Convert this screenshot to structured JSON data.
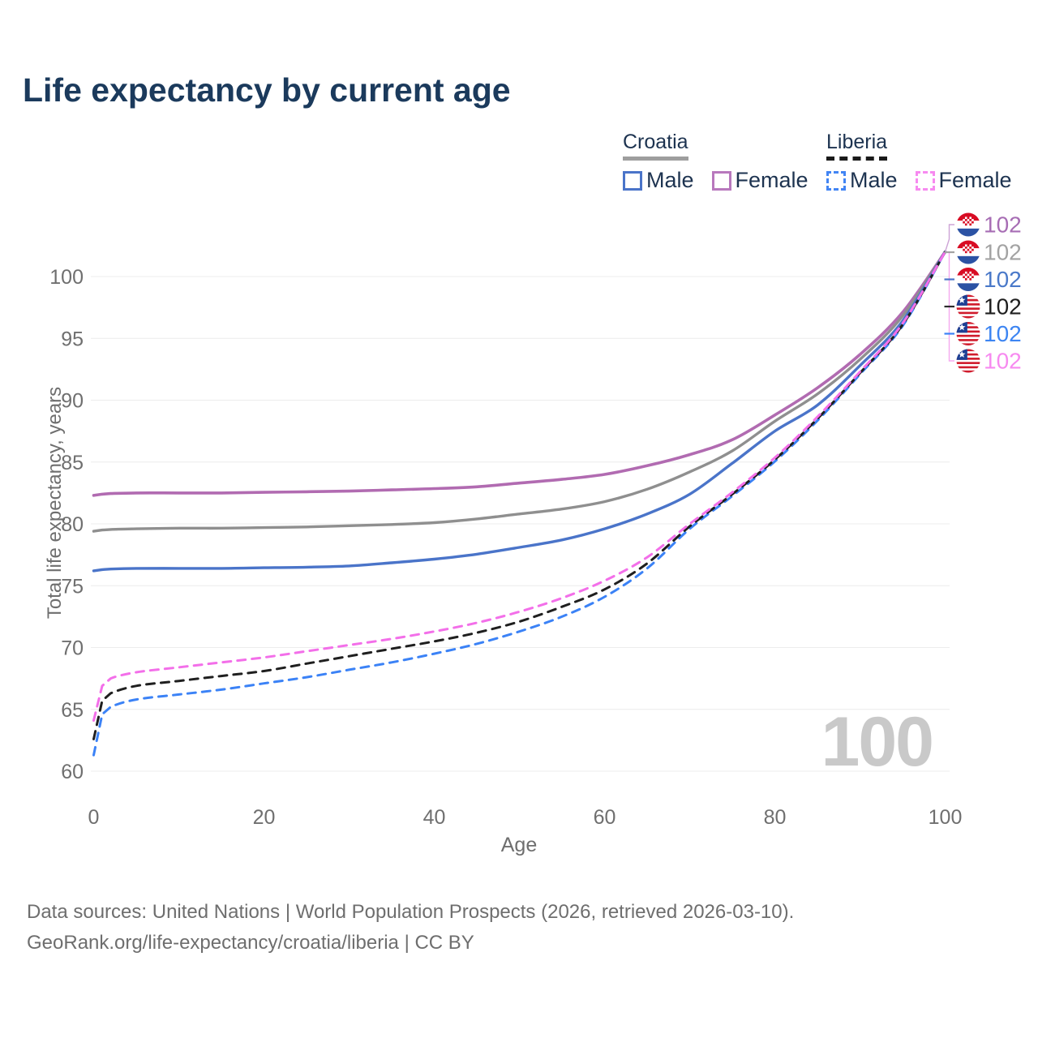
{
  "title": "Life expectancy by current age",
  "legend": {
    "groups": [
      {
        "label": "Croatia",
        "line_style": "solid",
        "underline_color": "#9e9e9e",
        "items": [
          {
            "label": "Male",
            "color": "#4a74c9"
          },
          {
            "label": "Female",
            "color": "#b878bd"
          }
        ]
      },
      {
        "label": "Liberia",
        "line_style": "dashed",
        "underline_color": "#1a1a1a",
        "items": [
          {
            "label": "Male",
            "color": "#4285f4"
          },
          {
            "label": "Female",
            "color": "#f78af0"
          }
        ]
      }
    ]
  },
  "watermark": "100",
  "footer": {
    "line1": "Data sources: United Nations | World Population Prospects (2026, retrieved 2026-03-10).",
    "line2": "GeoRank.org/life-expectancy/croatia/liberia | CC BY"
  },
  "chart_data": {
    "type": "line",
    "title": "Life expectancy by current age",
    "xlabel": "Age",
    "ylabel": "Total life expectancy, years",
    "xlim": [
      0,
      100
    ],
    "ylim": [
      60,
      102
    ],
    "x_ticks": [
      0,
      20,
      40,
      60,
      80,
      100
    ],
    "y_ticks": [
      60,
      65,
      70,
      75,
      80,
      85,
      90,
      95,
      100
    ],
    "grid": "horizontal",
    "legend_position": "top-right",
    "x": [
      0,
      1,
      2,
      5,
      10,
      15,
      20,
      25,
      30,
      35,
      40,
      45,
      50,
      55,
      60,
      65,
      70,
      75,
      80,
      85,
      90,
      95,
      100
    ],
    "series": [
      {
        "name": "Croatia Female",
        "country": "Croatia",
        "sex": "Female",
        "style": "solid",
        "color": "#b16bb1",
        "width": 3.6,
        "values": [
          82.3,
          82.4,
          82.45,
          82.5,
          82.5,
          82.5,
          82.55,
          82.6,
          82.65,
          82.75,
          82.85,
          83.0,
          83.3,
          83.6,
          84.0,
          84.7,
          85.6,
          86.8,
          88.8,
          91.0,
          93.7,
          97.1,
          102
        ]
      },
      {
        "name": "Croatia All",
        "country": "Croatia",
        "sex": "All",
        "style": "solid",
        "color": "#8f8f8f",
        "width": 3.4,
        "values": [
          79.4,
          79.5,
          79.55,
          79.6,
          79.65,
          79.65,
          79.7,
          79.75,
          79.85,
          79.95,
          80.1,
          80.4,
          80.8,
          81.2,
          81.8,
          82.8,
          84.2,
          85.9,
          88.3,
          90.5,
          93.3,
          96.8,
          102
        ]
      },
      {
        "name": "Croatia Male",
        "country": "Croatia",
        "sex": "Male",
        "style": "solid",
        "color": "#4a74c9",
        "width": 3.4,
        "values": [
          76.2,
          76.3,
          76.35,
          76.4,
          76.4,
          76.4,
          76.45,
          76.5,
          76.6,
          76.85,
          77.15,
          77.55,
          78.1,
          78.7,
          79.6,
          80.8,
          82.4,
          84.9,
          87.5,
          89.6,
          92.8,
          96.4,
          102
        ]
      },
      {
        "name": "Liberia Male",
        "country": "Liberia",
        "sex": "Male",
        "style": "dashed",
        "color": "#3b82f6",
        "width": 3,
        "values": [
          61.3,
          64.6,
          65.2,
          65.8,
          66.2,
          66.6,
          67.1,
          67.6,
          68.2,
          68.8,
          69.5,
          70.3,
          71.3,
          72.5,
          74.1,
          76.4,
          79.6,
          82.25,
          85.05,
          88.35,
          92.1,
          96.0,
          102
        ]
      },
      {
        "name": "Liberia All",
        "country": "Liberia",
        "sex": "All",
        "style": "dashed",
        "color": "#1f1f1f",
        "width": 3,
        "values": [
          62.6,
          65.7,
          66.3,
          66.9,
          67.3,
          67.7,
          68.1,
          68.7,
          69.3,
          69.9,
          70.5,
          71.2,
          72.1,
          73.3,
          74.7,
          76.8,
          79.8,
          82.4,
          85.2,
          88.5,
          92.2,
          96.1,
          102
        ]
      },
      {
        "name": "Liberia Female",
        "country": "Liberia",
        "sex": "Female",
        "style": "dashed",
        "color": "#f36fe9",
        "width": 3,
        "values": [
          64.1,
          66.9,
          67.5,
          68.0,
          68.4,
          68.8,
          69.2,
          69.7,
          70.2,
          70.7,
          71.3,
          72.0,
          72.9,
          74.0,
          75.4,
          77.3,
          80.0,
          82.55,
          85.35,
          88.65,
          92.3,
          96.2,
          102
        ]
      }
    ],
    "end_labels": [
      {
        "series": "Croatia Female",
        "flag": "croatia",
        "value": "102",
        "color": "#a76db4"
      },
      {
        "series": "Croatia All",
        "flag": "croatia",
        "value": "102",
        "color": "#a3a3a3"
      },
      {
        "series": "Croatia Male",
        "flag": "croatia",
        "value": "102",
        "color": "#4a79c9"
      },
      {
        "series": "Liberia All",
        "flag": "liberia",
        "value": "102",
        "color": "#1f1f1f"
      },
      {
        "series": "Liberia Male",
        "flag": "liberia",
        "value": "102",
        "color": "#3d85f2"
      },
      {
        "series": "Liberia Female",
        "flag": "liberia",
        "value": "102",
        "color": "#f78af0"
      }
    ]
  }
}
